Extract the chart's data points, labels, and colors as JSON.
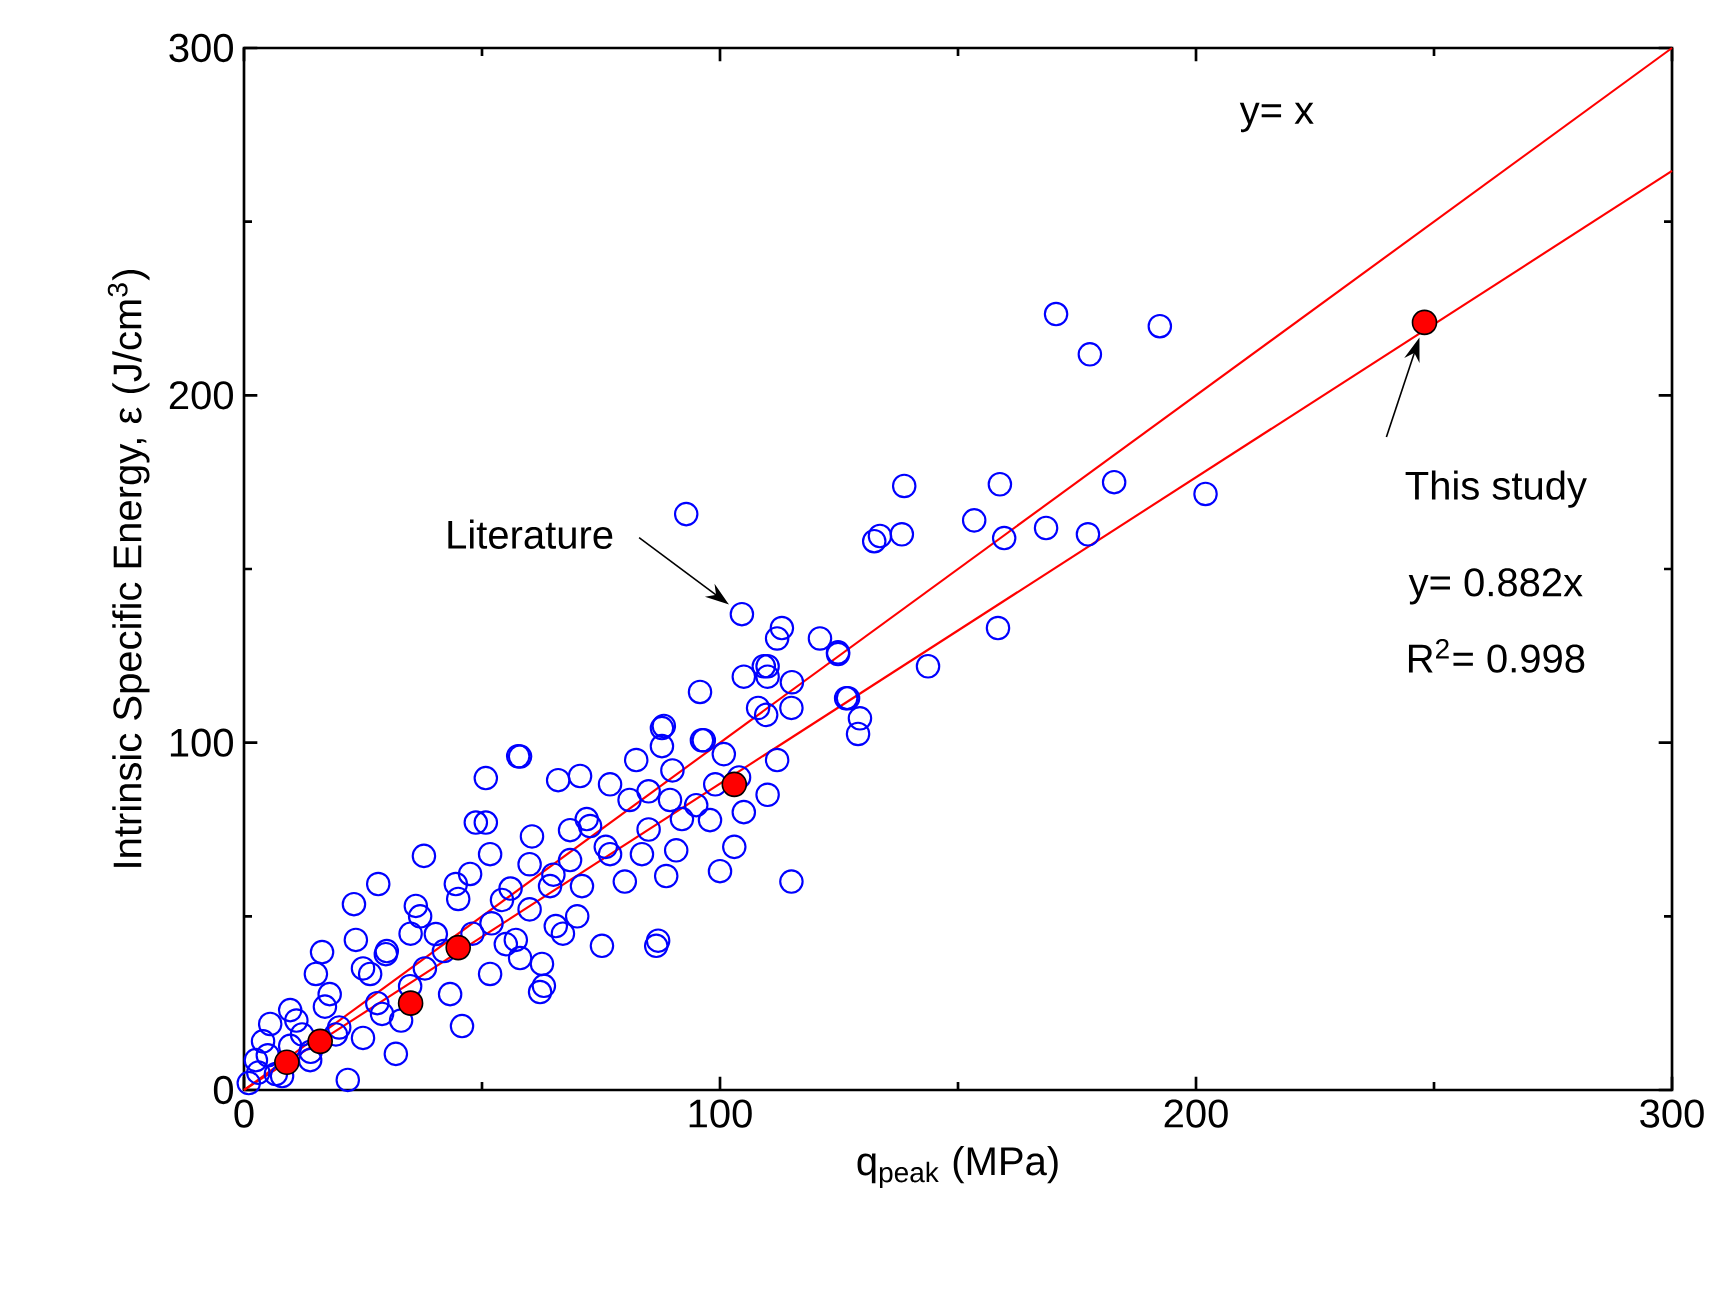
{
  "chart_data": {
    "type": "scatter",
    "xlabel": "q$_{peak}$ (MPa)",
    "ylabel": "Intrinsic Specific Energy, ε (J/cm$^{3}$)",
    "xlim": [
      0,
      300
    ],
    "ylim": [
      0,
      300
    ],
    "xticks": [
      0,
      100,
      200,
      300
    ],
    "yticks": [
      0,
      100,
      200,
      300
    ],
    "annotations": [
      "y= x",
      "Literature",
      "This study",
      "y= 0.882x",
      "R$^{2}$= 0.998"
    ],
    "series": [
      {
        "marker": "circle",
        "color": "#0000ff",
        "x": [
          170.6,
          192.4,
          177.7,
          138.7,
          158.8,
          182.8,
          202,
          133.6,
          138.2,
          153.4,
          159.7,
          168.5,
          177.3,
          158.4,
          143.7,
          124.8,
          126.5,
          129.4,
          92.9,
          104.6,
          113,
          132.4,
          124.8,
          95.8,
          109.2,
          115.1,
          88.2,
          57.6,
          109.7,
          96.6,
          126.9,
          129,
          100.8,
          87.8,
          87.8,
          58,
          50.8,
          66,
          70.6,
          76.9,
          48.7,
          50.8,
          68.5,
          37.8,
          60,
          88.7,
          28.2,
          23.1,
          16.4,
          75.2,
          86.6,
          62.2,
          62.6,
          45.8,
          21.8,
          31.9,
          5.5,
          9.7,
          29.8,
          37,
          44.5,
          60.5,
          81,
          96.2,
          83.6,
          71,
          54.2,
          40.3,
          26.5,
          18,
          12.2,
          2.5,
          51.7,
          65.5,
          57.1,
          34.9,
          43.3,
          29,
          51.7,
          68.5,
          76.9,
          90.8,
          97.9,
          89.5,
          82.4,
          72.7,
          64.3,
          47.5,
          36.1,
          23.5,
          15.1,
          9.7,
          6.7,
          19.3,
          13.9,
          1,
          3,
          5,
          8,
          4,
          11,
          14,
          17,
          20,
          25,
          28,
          33,
          38,
          42,
          48,
          52,
          56,
          60,
          63,
          58,
          65,
          72,
          76,
          80,
          85,
          87,
          90,
          95,
          100,
          103,
          105,
          110,
          112,
          115,
          108,
          104,
          99,
          92,
          85,
          70,
          67,
          55,
          45,
          35,
          30,
          25,
          112,
          110,
          110,
          105,
          115,
          121
        ],
        "values": [
          223.4,
          219.9,
          211.8,
          173.9,
          174.4,
          175,
          171.6,
          159.5,
          160,
          164,
          158.9,
          161.8,
          160,
          133,
          122,
          126,
          112.8,
          107,
          165.8,
          137,
          133,
          158,
          125.5,
          114.6,
          122,
          117.4,
          104.8,
          96.1,
          108,
          100.7,
          112.8,
          102.5,
          96.7,
          104.2,
          99,
          96,
          89.8,
          89.2,
          90.4,
          88,
          77,
          77,
          74.8,
          67.4,
          65,
          61.6,
          59.3,
          53.5,
          39.7,
          41.5,
          41.5,
          28.2,
          36.3,
          18.4,
          2.9,
          10.4,
          19,
          23,
          39.1,
          50,
          59.3,
          73,
          83.5,
          100.7,
          67.9,
          58.7,
          54.7,
          44.9,
          33.4,
          27.6,
          16,
          8.6,
          33.4,
          47.2,
          43.2,
          29.9,
          27.6,
          21.9,
          67.9,
          66.2,
          67.9,
          69,
          77.7,
          83.5,
          95,
          76,
          58.7,
          62.2,
          53,
          43.2,
          33.4,
          12.7,
          4.6,
          16,
          8.6,
          2,
          5,
          10,
          4,
          14,
          20,
          11,
          24,
          18,
          15,
          25,
          20,
          35,
          40,
          45,
          48,
          58,
          52,
          30,
          38,
          62,
          78,
          70,
          60,
          75,
          43,
          92,
          82,
          63,
          70,
          80,
          85,
          95,
          60,
          110,
          90,
          88,
          78,
          86,
          50,
          45,
          42,
          55,
          45,
          40,
          35,
          130,
          122,
          119,
          119,
          110,
          130
        ]
      },
      {
        "type": "line",
        "marker": "none",
        "color": "#ff0000",
        "x": [
          0,
          300
        ],
        "values": [
          0,
          300
        ]
      },
      {
        "type": "line",
        "marker": "none",
        "color": "#ff0000",
        "x": [
          0,
          300
        ],
        "values": [
          0,
          264.6
        ]
      },
      {
        "marker": "circle",
        "color": "#ff0000",
        "x": [
          9,
          16,
          35,
          45,
          103,
          248
        ],
        "values": [
          8,
          14,
          25,
          41,
          88,
          221
        ]
      }
    ]
  }
}
